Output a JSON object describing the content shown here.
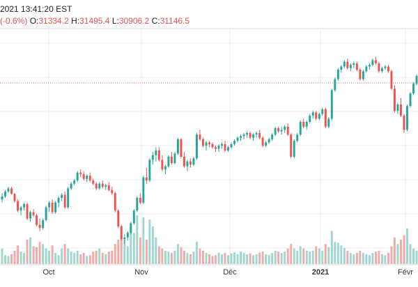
{
  "header": {
    "time": "2021 13:41:20 EST",
    "change": "(-0.6%)",
    "o_label": "O:",
    "o_value": "31334.2",
    "h_label": "H:",
    "h_value": "31495.4",
    "l_label": "L:",
    "l_value": "30906.2",
    "c_label": "C:",
    "c_value": "31146.5"
  },
  "colors": {
    "up": "#26a69a",
    "down": "#ef5350",
    "up_volume": "#9fd6d0",
    "down_volume": "#f3a9a7",
    "grid": "#eeeeee",
    "last_price_line": "#e0554f"
  },
  "chart_data": {
    "type": "candlestick",
    "x_tick_labels": [
      "Oct",
      "Nov",
      "Déc",
      "2021",
      "Févr"
    ],
    "ylim": [
      25400,
      32000
    ],
    "last_price": 31146.5,
    "candles": [
      [
        26800,
        27000,
        26700,
        26900,
        35
      ],
      [
        26900,
        27100,
        26850,
        27050,
        20
      ],
      [
        27050,
        27200,
        27000,
        27150,
        18
      ],
      [
        27150,
        27200,
        26950,
        26980,
        22
      ],
      [
        26980,
        27000,
        26700,
        26750,
        30
      ],
      [
        26750,
        26800,
        26400,
        26450,
        42
      ],
      [
        26450,
        26600,
        26300,
        26550,
        28
      ],
      [
        26550,
        26700,
        26450,
        26650,
        25
      ],
      [
        26650,
        26700,
        26150,
        26200,
        55
      ],
      [
        26200,
        26450,
        26100,
        26400,
        60
      ],
      [
        26400,
        26500,
        26250,
        26300,
        40
      ],
      [
        26300,
        26350,
        25950,
        26000,
        38
      ],
      [
        26000,
        26200,
        25800,
        25900,
        50
      ],
      [
        25900,
        26200,
        25850,
        26150,
        45
      ],
      [
        26150,
        26600,
        26100,
        26550,
        35
      ],
      [
        26550,
        26750,
        26400,
        26700,
        30
      ],
      [
        26700,
        26800,
        26350,
        26400,
        42
      ],
      [
        26400,
        26750,
        26350,
        26700,
        25
      ],
      [
        26700,
        26900,
        26550,
        26850,
        20
      ],
      [
        26850,
        27000,
        26750,
        26950,
        35
      ],
      [
        26950,
        27050,
        26500,
        26550,
        45
      ],
      [
        26550,
        27200,
        26500,
        27150,
        35
      ],
      [
        27150,
        27350,
        27100,
        27300,
        28
      ],
      [
        27300,
        27450,
        27250,
        27400,
        25
      ],
      [
        27400,
        27700,
        27350,
        27650,
        30
      ],
      [
        27650,
        27750,
        27500,
        27600,
        22
      ],
      [
        27600,
        27700,
        27400,
        27450,
        25
      ],
      [
        27450,
        27600,
        27350,
        27550,
        18
      ],
      [
        27550,
        27650,
        27350,
        27400,
        20
      ],
      [
        27400,
        27450,
        27250,
        27300,
        28
      ],
      [
        27300,
        27350,
        27100,
        27150,
        30
      ],
      [
        27150,
        27350,
        27100,
        27300,
        35
      ],
      [
        27300,
        27400,
        27150,
        27200,
        25
      ],
      [
        27200,
        27300,
        27100,
        27250,
        22
      ],
      [
        27250,
        27350,
        27050,
        27100,
        28
      ],
      [
        27100,
        27200,
        26950,
        27000,
        30
      ],
      [
        27000,
        27050,
        26400,
        26450,
        45
      ],
      [
        26450,
        26500,
        25900,
        25950,
        55
      ],
      [
        25950,
        26000,
        25500,
        25550,
        65
      ],
      [
        25550,
        25700,
        25400,
        25600,
        55
      ],
      [
        25600,
        25800,
        25500,
        25750,
        40
      ],
      [
        25750,
        26100,
        25700,
        26050,
        85
      ],
      [
        26050,
        26500,
        26000,
        26450,
        70
      ],
      [
        26450,
        26900,
        26400,
        26850,
        110
      ],
      [
        26850,
        27000,
        26650,
        26700,
        60
      ],
      [
        26700,
        27550,
        26650,
        27500,
        105
      ],
      [
        27500,
        27800,
        27300,
        27400,
        55
      ],
      [
        27400,
        28100,
        27350,
        28050,
        100
      ],
      [
        28050,
        28300,
        27900,
        28200,
        85
      ],
      [
        28200,
        28450,
        28000,
        28350,
        60
      ],
      [
        28350,
        28450,
        28000,
        28050,
        40
      ],
      [
        28050,
        28200,
        27700,
        27750,
        35
      ],
      [
        27750,
        27900,
        27600,
        27850,
        30
      ],
      [
        27850,
        28200,
        27800,
        28150,
        28
      ],
      [
        28150,
        28300,
        27900,
        27950,
        25
      ],
      [
        27950,
        28300,
        27900,
        28250,
        30
      ],
      [
        28250,
        28750,
        28200,
        28700,
        45
      ],
      [
        28700,
        28750,
        28100,
        28150,
        38
      ],
      [
        28150,
        28300,
        27800,
        27850,
        30
      ],
      [
        27850,
        28050,
        27700,
        28000,
        25
      ],
      [
        28000,
        28100,
        27800,
        27900,
        22
      ],
      [
        27900,
        28150,
        27850,
        28100,
        28
      ],
      [
        28100,
        28900,
        28050,
        28850,
        50
      ],
      [
        28850,
        29000,
        28650,
        28700,
        35
      ],
      [
        28700,
        28750,
        28450,
        28500,
        30
      ],
      [
        28500,
        28650,
        28350,
        28600,
        25
      ],
      [
        28600,
        28650,
        28450,
        28550,
        22
      ],
      [
        28550,
        28600,
        28400,
        28450,
        18
      ],
      [
        28450,
        28500,
        28300,
        28400,
        20
      ],
      [
        28400,
        28550,
        28300,
        28500,
        25
      ],
      [
        28500,
        28600,
        28400,
        28550,
        22
      ],
      [
        28550,
        28650,
        28300,
        28350,
        25
      ],
      [
        28350,
        28500,
        28300,
        28450,
        20
      ],
      [
        28450,
        28600,
        28400,
        28550,
        24
      ],
      [
        28550,
        28700,
        28500,
        28650,
        26
      ],
      [
        28650,
        28800,
        28600,
        28750,
        22
      ],
      [
        28750,
        28850,
        28650,
        28800,
        28
      ],
      [
        28800,
        28900,
        28700,
        28850,
        25
      ],
      [
        28850,
        28950,
        28750,
        28900,
        22
      ],
      [
        28900,
        28950,
        28700,
        28750,
        24
      ],
      [
        28750,
        28900,
        28650,
        28850,
        20
      ],
      [
        28850,
        28950,
        28750,
        28900,
        22
      ],
      [
        28900,
        29000,
        28700,
        28750,
        26
      ],
      [
        28750,
        28800,
        28450,
        28500,
        28
      ],
      [
        28500,
        28650,
        28450,
        28600,
        22
      ],
      [
        28600,
        28750,
        28550,
        28700,
        20
      ],
      [
        28700,
        28900,
        28650,
        28850,
        25
      ],
      [
        28850,
        29100,
        28800,
        29050,
        30
      ],
      [
        29050,
        29100,
        28900,
        28950,
        28
      ],
      [
        28950,
        29100,
        28850,
        29000,
        25
      ],
      [
        29000,
        29150,
        28900,
        29100,
        28
      ],
      [
        29100,
        29200,
        28800,
        28850,
        35
      ],
      [
        28850,
        28900,
        28100,
        28150,
        45
      ],
      [
        28150,
        28700,
        28100,
        28650,
        35
      ],
      [
        28650,
        28900,
        28600,
        28850,
        30
      ],
      [
        28850,
        29300,
        28800,
        29250,
        40
      ],
      [
        29250,
        29350,
        29050,
        29100,
        35
      ],
      [
        29100,
        29300,
        29000,
        29250,
        30
      ],
      [
        29250,
        29500,
        29200,
        29450,
        28
      ],
      [
        29450,
        29600,
        29350,
        29550,
        30
      ],
      [
        29550,
        29600,
        29300,
        29350,
        40
      ],
      [
        29350,
        29550,
        29300,
        29500,
        35
      ],
      [
        29500,
        29700,
        29450,
        29650,
        30
      ],
      [
        29650,
        29700,
        29050,
        29100,
        45
      ],
      [
        29100,
        29400,
        29050,
        29350,
        38
      ],
      [
        29350,
        30300,
        29300,
        30250,
        75
      ],
      [
        30250,
        30650,
        30200,
        30600,
        50
      ],
      [
        30600,
        30950,
        30550,
        30900,
        48
      ],
      [
        30900,
        31050,
        30800,
        31000,
        42
      ],
      [
        31000,
        31200,
        30950,
        31150,
        36
      ],
      [
        31150,
        31250,
        30900,
        30950,
        30
      ],
      [
        30950,
        31100,
        30850,
        31050,
        25
      ],
      [
        31050,
        31150,
        30950,
        31100,
        22
      ],
      [
        31100,
        31150,
        30850,
        30900,
        25
      ],
      [
        30900,
        30950,
        30550,
        30600,
        30
      ],
      [
        30600,
        30900,
        30550,
        30850,
        25
      ],
      [
        30850,
        31050,
        30800,
        31000,
        22
      ],
      [
        31000,
        31100,
        30900,
        31050,
        20
      ],
      [
        31050,
        31250,
        31000,
        31200,
        25
      ],
      [
        31200,
        31300,
        31050,
        31100,
        28
      ],
      [
        31100,
        31150,
        30800,
        30850,
        30
      ],
      [
        30850,
        31000,
        30800,
        30950,
        22
      ],
      [
        30950,
        31050,
        30900,
        31000,
        20
      ],
      [
        31000,
        31050,
        30800,
        30850,
        25
      ],
      [
        30850,
        30900,
        30250,
        30300,
        40
      ],
      [
        30300,
        30400,
        29550,
        29600,
        60
      ],
      [
        29600,
        29850,
        29500,
        29800,
        45
      ],
      [
        29800,
        30000,
        29400,
        29450,
        55
      ],
      [
        29450,
        29500,
        28900,
        29000,
        65
      ],
      [
        29000,
        29800,
        28950,
        29750,
        80
      ],
      [
        29750,
        30200,
        29700,
        30150,
        45
      ],
      [
        30150,
        30500,
        30100,
        30450,
        35
      ],
      [
        30450,
        30750,
        30400,
        30700,
        30
      ]
    ]
  }
}
